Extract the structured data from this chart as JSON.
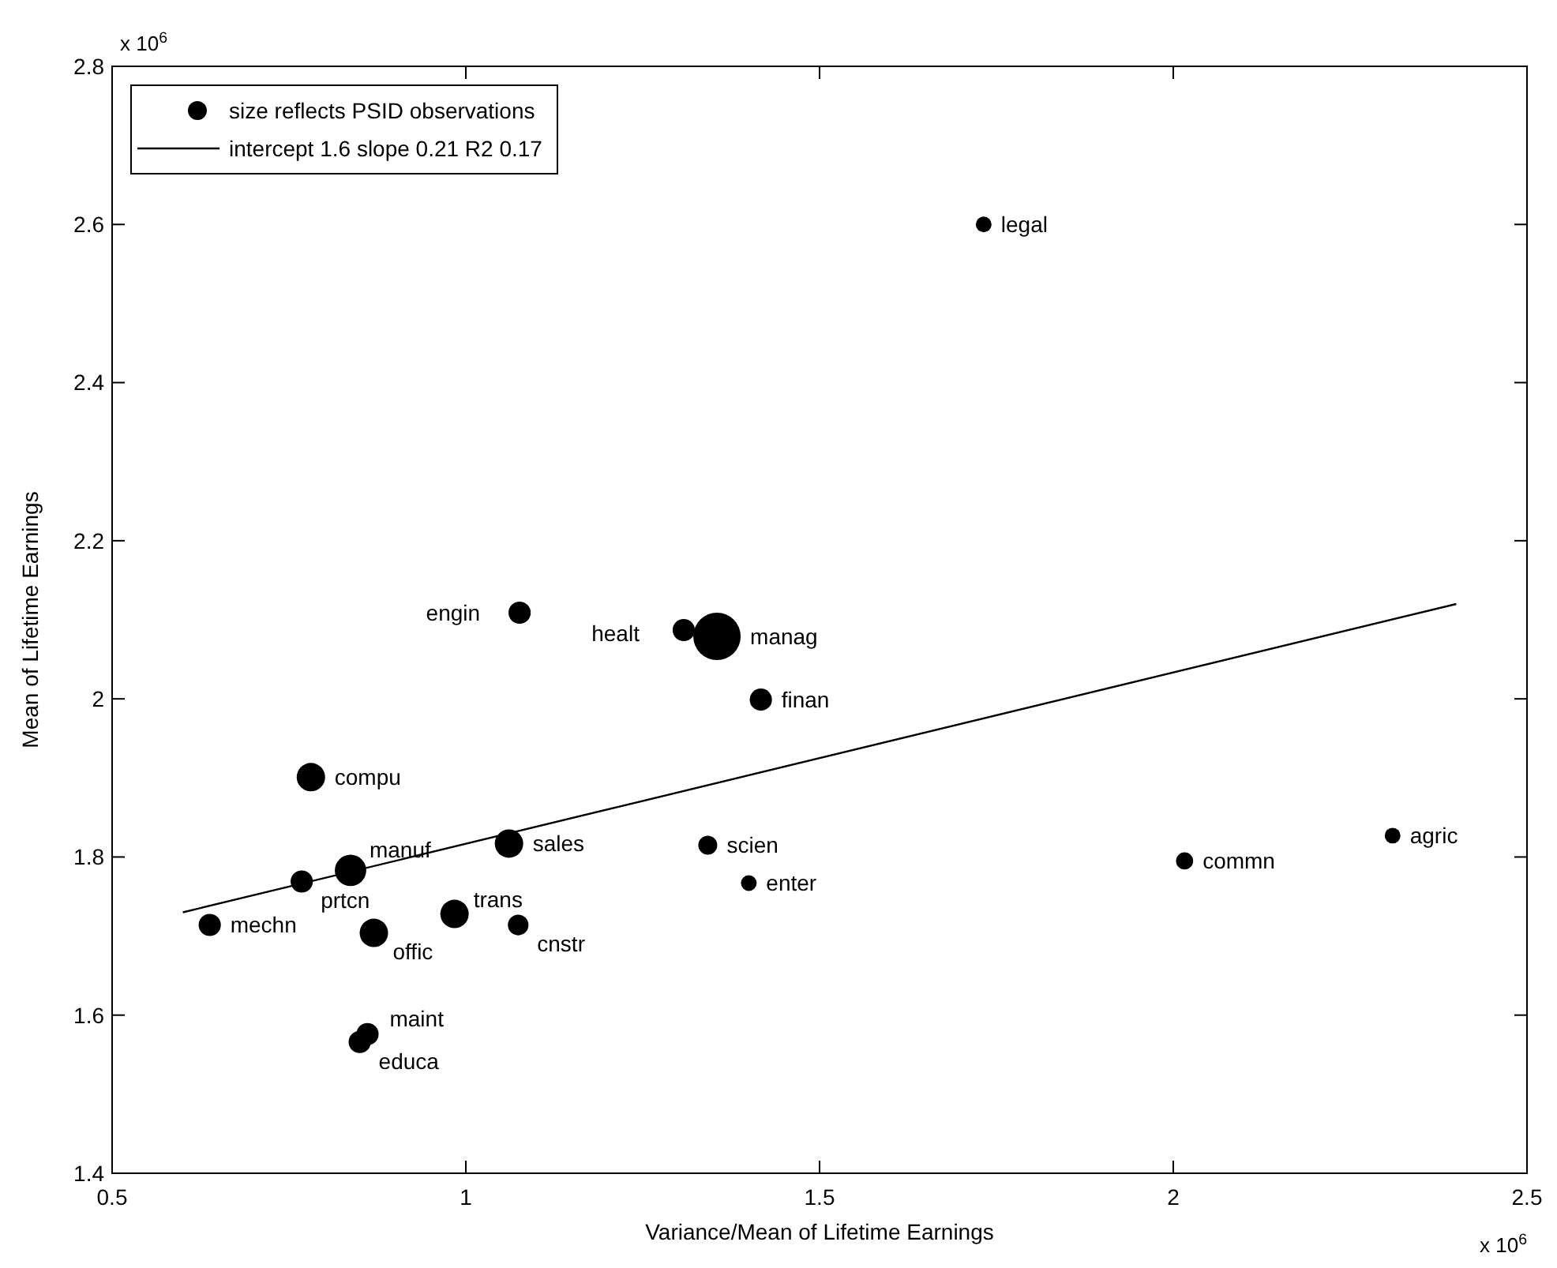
{
  "chart_data": {
    "type": "bubble",
    "xlabel": "Variance/Mean of Lifetime Earnings",
    "ylabel": "Mean of Lifetime Earnings",
    "annotations": [
      "x 10$^{6}$",
      "x 10$^{6}$"
    ],
    "xlim": [
      0.5,
      2.5
    ],
    "xticks": [
      0.5,
      1,
      1.5,
      2,
      2.5
    ],
    "ylim": [
      1.4,
      2.8
    ],
    "yticks": [
      1.4,
      1.6,
      1.8,
      {
        "value": 2,
        "label": "2"
      },
      2.2,
      2.4,
      2.6,
      2.8
    ],
    "grid": false,
    "legend": "top left",
    "series": [
      {
        "name": "size reflects PSID observations",
        "color": "#000000",
        "x": [
          1.732,
          1.076,
          1.308,
          1.355,
          1.417,
          0.781,
          1.061,
          1.342,
          0.837,
          0.768,
          0.638,
          0.87,
          0.984,
          1.074,
          1.4,
          2.016,
          2.31,
          0.861,
          0.85
        ],
        "values": [
          2.6,
          2.109,
          2.087,
          2.079,
          1.999,
          1.901,
          1.817,
          1.815,
          1.783,
          1.769,
          1.714,
          1.704,
          1.728,
          1.714,
          1.767,
          1.795,
          1.827,
          1.576,
          1.566
        ],
        "sizes": [
          0.11,
          0.22,
          0.22,
          1,
          0.22,
          0.36,
          0.36,
          0.16,
          0.44,
          0.22,
          0.22,
          0.36,
          0.36,
          0.19,
          0.11,
          0.13,
          0.11,
          0.22,
          0.22
        ],
        "value_labels": [
          "legal",
          "engin",
          "healt",
          "manag",
          "finan",
          "compu",
          "sales",
          "scien",
          "manuf",
          "prtcn",
          "mechn",
          "offic",
          "trans",
          "cnstr",
          "enter",
          "commn",
          "agric",
          "maint",
          "educa"
        ]
      },
      {
        "type": "line",
        "name": "intercept 1.6 slope 0.21 R2 0.17",
        "color": "#000000",
        "line_style": "solid",
        "x": [
          0.6,
          2.4
        ],
        "values": [
          1.73,
          2.12
        ]
      }
    ]
  }
}
